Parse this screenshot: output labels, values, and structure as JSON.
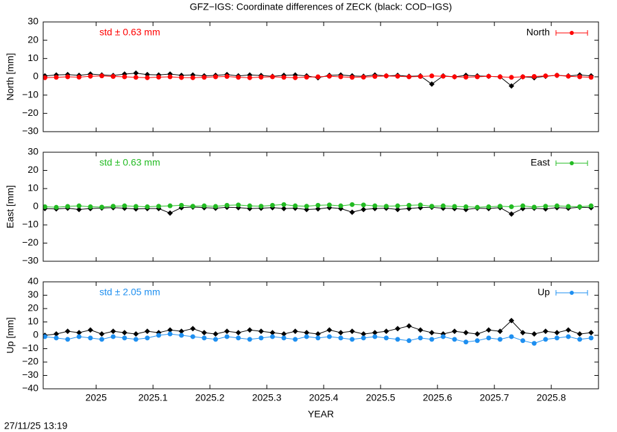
{
  "title": "GFZ−IGS: Coordinate differences of ZECK (black: COD−IGS)",
  "footer": "27/11/25 13:19",
  "chart_data": [
    {
      "type": "line",
      "ylabel": "North [mm]",
      "annotation": "std ± 0.63 mm",
      "x": [
        2024.91,
        2024.93,
        2024.95,
        2024.97,
        2024.99,
        2025.01,
        2025.03,
        2025.05,
        2025.07,
        2025.09,
        2025.11,
        2025.13,
        2025.15,
        2025.17,
        2025.19,
        2025.21,
        2025.23,
        2025.25,
        2025.27,
        2025.29,
        2025.31,
        2025.33,
        2025.35,
        2025.37,
        2025.39,
        2025.41,
        2025.43,
        2025.45,
        2025.47,
        2025.49,
        2025.51,
        2025.53,
        2025.55,
        2025.57,
        2025.59,
        2025.61,
        2025.63,
        2025.65,
        2025.67,
        2025.69,
        2025.71,
        2025.73,
        2025.75,
        2025.77,
        2025.79,
        2025.81,
        2025.83,
        2025.85,
        2025.87
      ],
      "xlim": [
        2024.907,
        2025.883
      ],
      "xticks": [
        2025,
        2025.1,
        2025.2,
        2025.3,
        2025.4,
        2025.5,
        2025.6,
        2025.7,
        2025.8
      ],
      "ylim": [
        -30,
        30
      ],
      "yticks": [
        {
          "value": -30,
          "label": "−30"
        },
        {
          "value": -20,
          "label": "−20"
        },
        {
          "value": -10,
          "label": "−10"
        },
        0,
        10,
        20,
        30
      ],
      "series": [
        {
          "color": "#000000",
          "values": [
            0.5,
            1,
            1.2,
            0.8,
            1.5,
            1,
            0.7,
            1.5,
            2,
            1.2,
            1,
            1.5,
            0.8,
            1,
            0.5,
            0.8,
            1.2,
            0.5,
            1,
            0.7,
            0.3,
            0.8,
            1,
            0.5,
            -0.5,
            0.8,
            1,
            0.5,
            0.3,
            1,
            0.5,
            0.8,
            0.3,
            0.5,
            -4,
            0.5,
            0,
            0.8,
            0.5,
            0.3,
            0,
            -5,
            0,
            -0.5,
            0.3,
            0.8,
            0.5,
            1,
            0.5
          ]
        },
        {
          "name": "North",
          "color": "#ff0000",
          "values": [
            -0.5,
            -0.3,
            0,
            -0.2,
            0.3,
            0.5,
            0.2,
            0,
            -0.3,
            -0.5,
            -0.2,
            0,
            -0.4,
            -0.5,
            -0.3,
            0,
            0.2,
            -0.3,
            -0.5,
            -0.2,
            0,
            -0.3,
            -0.5,
            -0.2,
            0,
            0.3,
            0,
            -0.3,
            -0.2,
            0.2,
            0.5,
            0.3,
            0,
            0.2,
            0.5,
            0.3,
            0,
            -0.2,
            0,
            0.3,
            0,
            -0.3,
            0,
            0.2,
            0.5,
            0.8,
            0.3,
            0,
            -0.3
          ]
        }
      ]
    },
    {
      "type": "line",
      "ylabel": "East [mm]",
      "annotation": "std ± 0.63 mm",
      "x": [
        2024.91,
        2024.93,
        2024.95,
        2024.97,
        2024.99,
        2025.01,
        2025.03,
        2025.05,
        2025.07,
        2025.09,
        2025.11,
        2025.13,
        2025.15,
        2025.17,
        2025.19,
        2025.21,
        2025.23,
        2025.25,
        2025.27,
        2025.29,
        2025.31,
        2025.33,
        2025.35,
        2025.37,
        2025.39,
        2025.41,
        2025.43,
        2025.45,
        2025.47,
        2025.49,
        2025.51,
        2025.53,
        2025.55,
        2025.57,
        2025.59,
        2025.61,
        2025.63,
        2025.65,
        2025.67,
        2025.69,
        2025.71,
        2025.73,
        2025.75,
        2025.77,
        2025.79,
        2025.81,
        2025.83,
        2025.85,
        2025.87
      ],
      "xlim": [
        2024.907,
        2025.883
      ],
      "xticks": [
        2025,
        2025.1,
        2025.2,
        2025.3,
        2025.4,
        2025.5,
        2025.6,
        2025.7,
        2025.8
      ],
      "ylim": [
        -30,
        30
      ],
      "yticks": [
        {
          "value": -30,
          "label": "−30"
        },
        {
          "value": -20,
          "label": "−20"
        },
        {
          "value": -10,
          "label": "−10"
        },
        0,
        10,
        20,
        30
      ],
      "series": [
        {
          "color": "#000000",
          "values": [
            -1,
            -1.2,
            -0.8,
            -1.5,
            -1,
            -0.7,
            -0.5,
            -0.8,
            -1.2,
            -1,
            -1,
            -3.5,
            -0.5,
            -0.2,
            -0.5,
            -0.8,
            -0.3,
            -0.5,
            -1,
            -0.8,
            -0.5,
            -1,
            -0.8,
            -1.5,
            -1.2,
            -0.5,
            -1,
            -3,
            -1.5,
            -1,
            -0.8,
            -1.5,
            -1,
            -0.5,
            -0.3,
            -0.8,
            -1,
            -1.5,
            -0.8,
            -1,
            -0.5,
            -4,
            -1,
            -0.8,
            -1.2,
            -0.5,
            -0.8,
            -0.3,
            -0.5
          ]
        },
        {
          "name": "East",
          "color": "#22bb22",
          "values": [
            0,
            -0.3,
            0.2,
            0.5,
            0,
            -0.2,
            0.3,
            0.5,
            0.2,
            0,
            0.3,
            0.5,
            0.8,
            0.3,
            0.5,
            0.2,
            0.8,
            1,
            0.5,
            0.3,
            0.8,
            1.2,
            0.5,
            0.3,
            0.8,
            1,
            0.5,
            1.2,
            1,
            0.5,
            0.3,
            0.5,
            0.8,
            1,
            0.3,
            0.5,
            0.2,
            0,
            -0.3,
            0,
            0.3,
            0,
            0.5,
            -0.2,
            0.3,
            0.5,
            0.2,
            0,
            0.5
          ]
        }
      ]
    },
    {
      "type": "line",
      "ylabel": "Up [mm]",
      "annotation": "std ± 2.05 mm",
      "xlabel": "YEAR",
      "x": [
        2024.91,
        2024.93,
        2024.95,
        2024.97,
        2024.99,
        2025.01,
        2025.03,
        2025.05,
        2025.07,
        2025.09,
        2025.11,
        2025.13,
        2025.15,
        2025.17,
        2025.19,
        2025.21,
        2025.23,
        2025.25,
        2025.27,
        2025.29,
        2025.31,
        2025.33,
        2025.35,
        2025.37,
        2025.39,
        2025.41,
        2025.43,
        2025.45,
        2025.47,
        2025.49,
        2025.51,
        2025.53,
        2025.55,
        2025.57,
        2025.59,
        2025.61,
        2025.63,
        2025.65,
        2025.67,
        2025.69,
        2025.71,
        2025.73,
        2025.75,
        2025.77,
        2025.79,
        2025.81,
        2025.83,
        2025.85,
        2025.87
      ],
      "xlim": [
        2024.907,
        2025.883
      ],
      "xticks": [
        2025,
        2025.1,
        2025.2,
        2025.3,
        2025.4,
        2025.5,
        2025.6,
        2025.7,
        2025.8
      ],
      "ylim": [
        -40,
        40
      ],
      "yticks": [
        {
          "value": -40,
          "label": "−40"
        },
        {
          "value": -30,
          "label": "−30"
        },
        {
          "value": -20,
          "label": "−20"
        },
        {
          "value": -10,
          "label": "−10"
        },
        0,
        10,
        20,
        30,
        40
      ],
      "series": [
        {
          "color": "#000000",
          "values": [
            0,
            1,
            3,
            2,
            4,
            1,
            3,
            2,
            1,
            3,
            2,
            4,
            3,
            5,
            2,
            1,
            3,
            2,
            4,
            3,
            2,
            1,
            3,
            2,
            1,
            4,
            2,
            3,
            1,
            2,
            3,
            5,
            7,
            4,
            2,
            1,
            3,
            2,
            1,
            4,
            3,
            11,
            2,
            1,
            3,
            2,
            4,
            1,
            2
          ]
        },
        {
          "name": "Up",
          "color": "#1e8ff0",
          "values": [
            -1,
            -2,
            -3,
            -1,
            -2,
            -3,
            -1,
            -2,
            -3,
            -2,
            0,
            1,
            0,
            -1,
            -2,
            -3,
            -1,
            -2,
            -3,
            -2,
            -1,
            -2,
            -3,
            -1,
            -2,
            -1,
            -2,
            -3,
            -2,
            -1,
            -2,
            -3,
            -4,
            -2,
            -3,
            -1,
            -3,
            -5,
            -4,
            -2,
            -3,
            -1,
            -4,
            -6,
            -3,
            -2,
            -1,
            -3,
            -2
          ]
        }
      ]
    }
  ]
}
